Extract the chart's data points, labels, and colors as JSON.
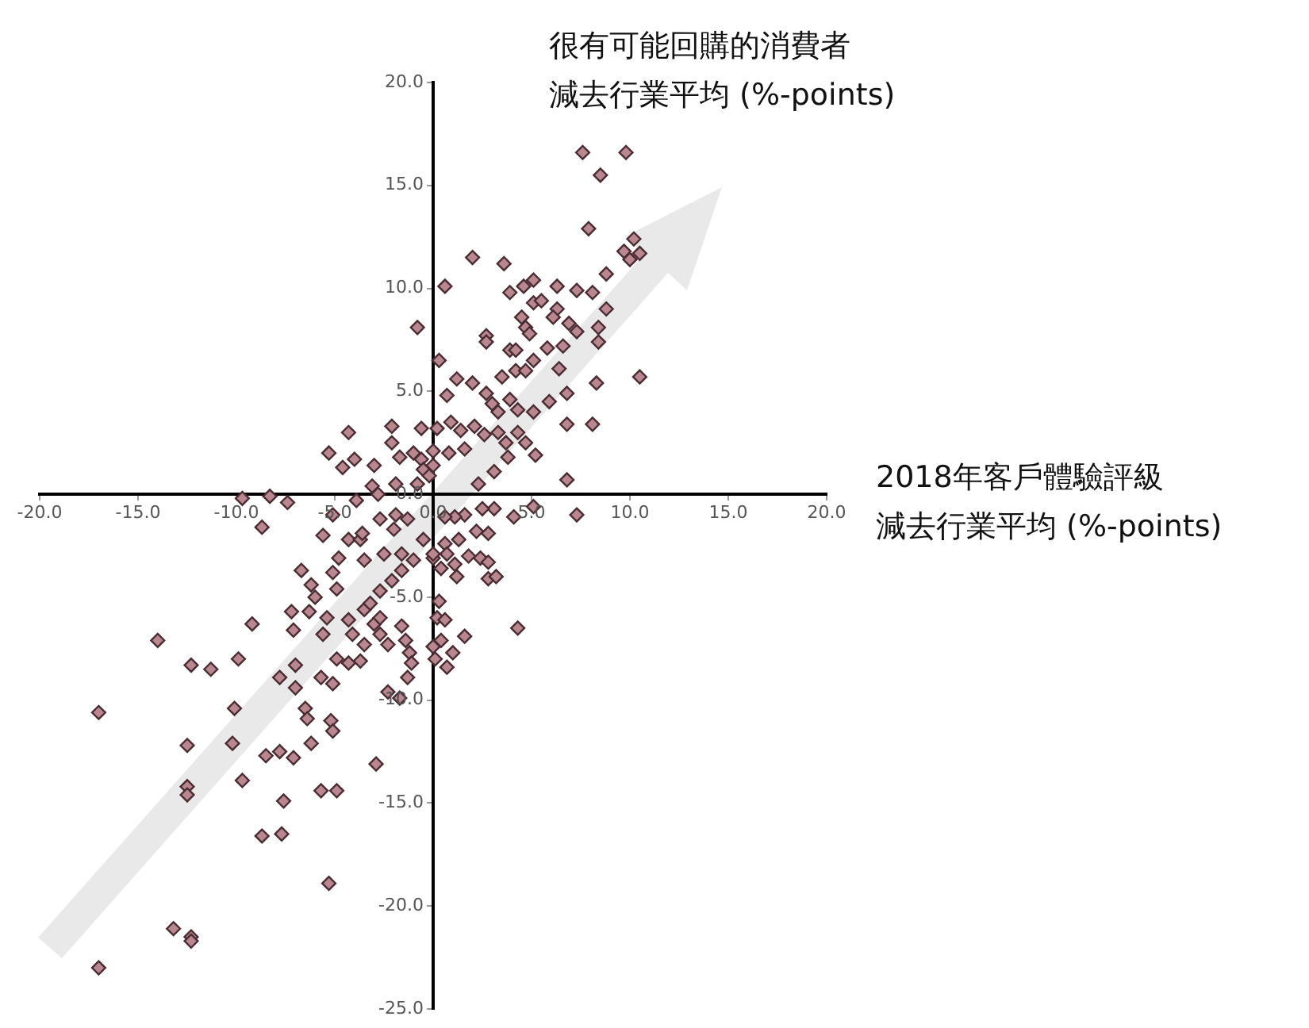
{
  "chart_data": {
    "type": "scatter",
    "xlabel": "2018年客戶體驗評級減去行業平均 (%-points)",
    "ylabel": "很有可能回購的消費者減去行業平均 (%-points)",
    "xlim": [
      -20,
      20
    ],
    "ylim": [
      -25,
      20
    ],
    "xticks": [
      {
        "value": -20,
        "label": "-20.0"
      },
      {
        "value": -15,
        "label": "-15.0"
      },
      {
        "value": -10,
        "label": "-10.0"
      },
      {
        "value": -5,
        "label": "-5.0"
      },
      {
        "value": 0,
        "label": "0.0"
      },
      {
        "value": 5,
        "label": "5.0"
      },
      {
        "value": 10,
        "label": "10.0"
      },
      {
        "value": 15,
        "label": "15.0"
      },
      {
        "value": 20,
        "label": "20.0"
      }
    ],
    "yticks": [
      {
        "value": -25,
        "label": "-25.0"
      },
      {
        "value": -20,
        "label": "-20.0"
      },
      {
        "value": -15,
        "label": "-15.0"
      },
      {
        "value": -10,
        "label": "-10.0"
      },
      {
        "value": -5,
        "label": "-5.0"
      },
      {
        "value": 0,
        "label": "0.0"
      },
      {
        "value": 5,
        "label": "5.0"
      },
      {
        "value": 10,
        "label": "10.0"
      },
      {
        "value": 15,
        "label": "15.0"
      },
      {
        "value": 20,
        "label": "20.0"
      }
    ],
    "grid": false,
    "legend": false,
    "marker": "diamond",
    "series": [
      {
        "color": "#b98790",
        "x": [
          7.6,
          9.8,
          8.5,
          7.9,
          10.2,
          9.7,
          10.0,
          10.5,
          2.0,
          3.6,
          0.6,
          3.9,
          4.6,
          5.1,
          5.1,
          5.5,
          6.3,
          7.3,
          8.1,
          8.8,
          8.8,
          8.4,
          8.4,
          6.3,
          6.1,
          6.9,
          7.3,
          4.5,
          4.7,
          4.9,
          2.7,
          2.7,
          3.9,
          4.2,
          5.8,
          6.6,
          5.1,
          4.2,
          3.5,
          4.7,
          6.4,
          8.3,
          10.5,
          -0.8,
          0.3,
          0.7,
          1.2,
          2.0,
          2.7,
          3.0,
          3.3,
          3.9,
          4.3,
          5.1,
          5.9,
          6.8,
          6.8,
          8.1,
          -0.6,
          0.2,
          0.9,
          1.4,
          2.1,
          2.6,
          3.3,
          3.7,
          4.3,
          4.7,
          5.2,
          3.8,
          3.1,
          2.3,
          6.8,
          1.6,
          0.8,
          0.0,
          -1.0,
          5.1,
          7.3,
          4.1,
          3.1,
          2.5,
          1.6,
          1.1,
          0.6,
          2.2,
          2.8,
          1.3,
          0.6,
          0.7,
          1.8,
          2.4,
          2.8,
          0.0,
          0.4,
          1.1,
          1.2,
          2.8,
          3.2,
          0.3,
          0.2,
          0.6,
          1.6,
          0.4,
          0.0,
          1.0,
          0.1,
          0.7,
          4.3,
          -17.0,
          -17.0,
          -14.0,
          -13.2,
          -12.3,
          -12.3,
          -12.5,
          -12.5,
          -12.5,
          -12.3,
          -11.3,
          -9.9,
          -9.2,
          -10.1,
          -10.2,
          -9.7,
          -8.7,
          -7.7,
          -7.6,
          -8.5,
          -7.8,
          -7.1,
          -7.8,
          -7.0,
          -7.0,
          -6.5,
          -6.4,
          -6.2,
          -5.3,
          -5.7,
          -4.9,
          -5.2,
          -5.1,
          -5.7,
          -5.1,
          -4.9,
          -4.3,
          -3.7,
          -2.9,
          -2.3,
          -1.7,
          -7.2,
          -7.1,
          -6.7,
          -6.2,
          -6.0,
          -6.3,
          -5.6,
          -5.4,
          -5.1,
          -4.9,
          -4.3,
          -4.1,
          -3.5,
          -3.5,
          -3.0,
          -2.7,
          -2.7,
          -2.3,
          -1.6,
          -1.4,
          -1.2,
          -1.1,
          -1.3,
          -3.2,
          -2.7,
          -2.1,
          -1.6,
          -1.0,
          -1.6,
          -2.5,
          -3.5,
          -4.3,
          -4.8,
          -3.7,
          -5.6,
          -5.1,
          -3.6,
          -2.7,
          -2.0,
          -1.3,
          -0.5,
          0.0,
          -8.7,
          -7.4,
          -9.7,
          -8.3,
          -4.3,
          -5.3,
          -4.6,
          -4.0,
          -3.0,
          -2.1,
          -2.1,
          -1.7,
          -0.6,
          -0.5,
          0.0,
          -3.1,
          -2.8,
          -1.9,
          -1.9,
          -0.8,
          -0.2,
          -3.9
        ],
        "values": [
          16.6,
          16.6,
          15.5,
          12.9,
          12.4,
          11.8,
          11.4,
          11.7,
          11.5,
          11.2,
          10.1,
          9.8,
          10.1,
          10.4,
          9.3,
          9.4,
          10.1,
          9.9,
          9.8,
          10.7,
          9.0,
          8.1,
          7.4,
          9.0,
          8.6,
          8.3,
          7.9,
          8.6,
          8.1,
          7.8,
          7.7,
          7.4,
          7.0,
          7.0,
          7.1,
          7.2,
          6.5,
          6.0,
          5.7,
          6.0,
          6.1,
          5.4,
          5.7,
          8.1,
          6.5,
          4.8,
          5.6,
          5.4,
          4.9,
          4.4,
          4.0,
          4.6,
          4.1,
          4.0,
          4.5,
          4.9,
          3.4,
          3.4,
          3.2,
          3.2,
          3.5,
          3.1,
          3.3,
          2.9,
          3.0,
          2.5,
          3.0,
          2.5,
          1.9,
          1.8,
          1.1,
          0.5,
          0.7,
          2.2,
          2.0,
          1.4,
          2.0,
          -0.6,
          -1.0,
          -1.1,
          -0.7,
          -0.7,
          -1.0,
          -1.1,
          -1.1,
          -1.8,
          -1.9,
          -2.2,
          -2.4,
          -2.9,
          -3.0,
          -3.1,
          -3.3,
          -3.1,
          -3.6,
          -3.4,
          -4.0,
          -4.1,
          -4.0,
          -5.2,
          -6.0,
          -6.1,
          -6.9,
          -7.1,
          -7.4,
          -7.7,
          -8.0,
          -8.4,
          -6.5,
          -10.6,
          -23.0,
          -7.1,
          -21.1,
          -21.5,
          -21.7,
          -12.2,
          -14.2,
          -14.6,
          -8.3,
          -8.5,
          -8.0,
          -6.3,
          -10.4,
          -12.1,
          -13.9,
          -16.6,
          -16.5,
          -14.9,
          -12.7,
          -12.5,
          -12.8,
          -8.9,
          -9.4,
          -8.3,
          -10.4,
          -10.9,
          -12.1,
          -18.9,
          -14.4,
          -14.4,
          -11.0,
          -11.5,
          -8.9,
          -9.2,
          -8.0,
          -8.2,
          -8.1,
          -13.1,
          -9.6,
          -9.9,
          -5.7,
          -6.6,
          -3.7,
          -4.4,
          -5.0,
          -5.7,
          -6.8,
          -6.0,
          -3.8,
          -4.6,
          -6.1,
          -6.8,
          -7.3,
          -5.6,
          -6.3,
          -6.0,
          -6.8,
          -7.3,
          -6.4,
          -7.1,
          -7.7,
          -8.2,
          -8.9,
          -5.3,
          -4.7,
          -4.2,
          -3.7,
          -3.2,
          -2.9,
          -2.9,
          -3.2,
          -2.2,
          -3.1,
          -2.2,
          -2.0,
          -1.0,
          -1.9,
          -1.2,
          -1.7,
          -1.2,
          -2.2,
          -2.9,
          -1.6,
          -0.4,
          -0.2,
          -0.1,
          3.0,
          2.0,
          1.3,
          1.7,
          1.4,
          3.3,
          2.5,
          1.8,
          1.7,
          1.2,
          2.1,
          0.4,
          0.0,
          0.5,
          -1.0,
          0.5,
          0.9,
          -0.3
        ]
      }
    ]
  }
}
